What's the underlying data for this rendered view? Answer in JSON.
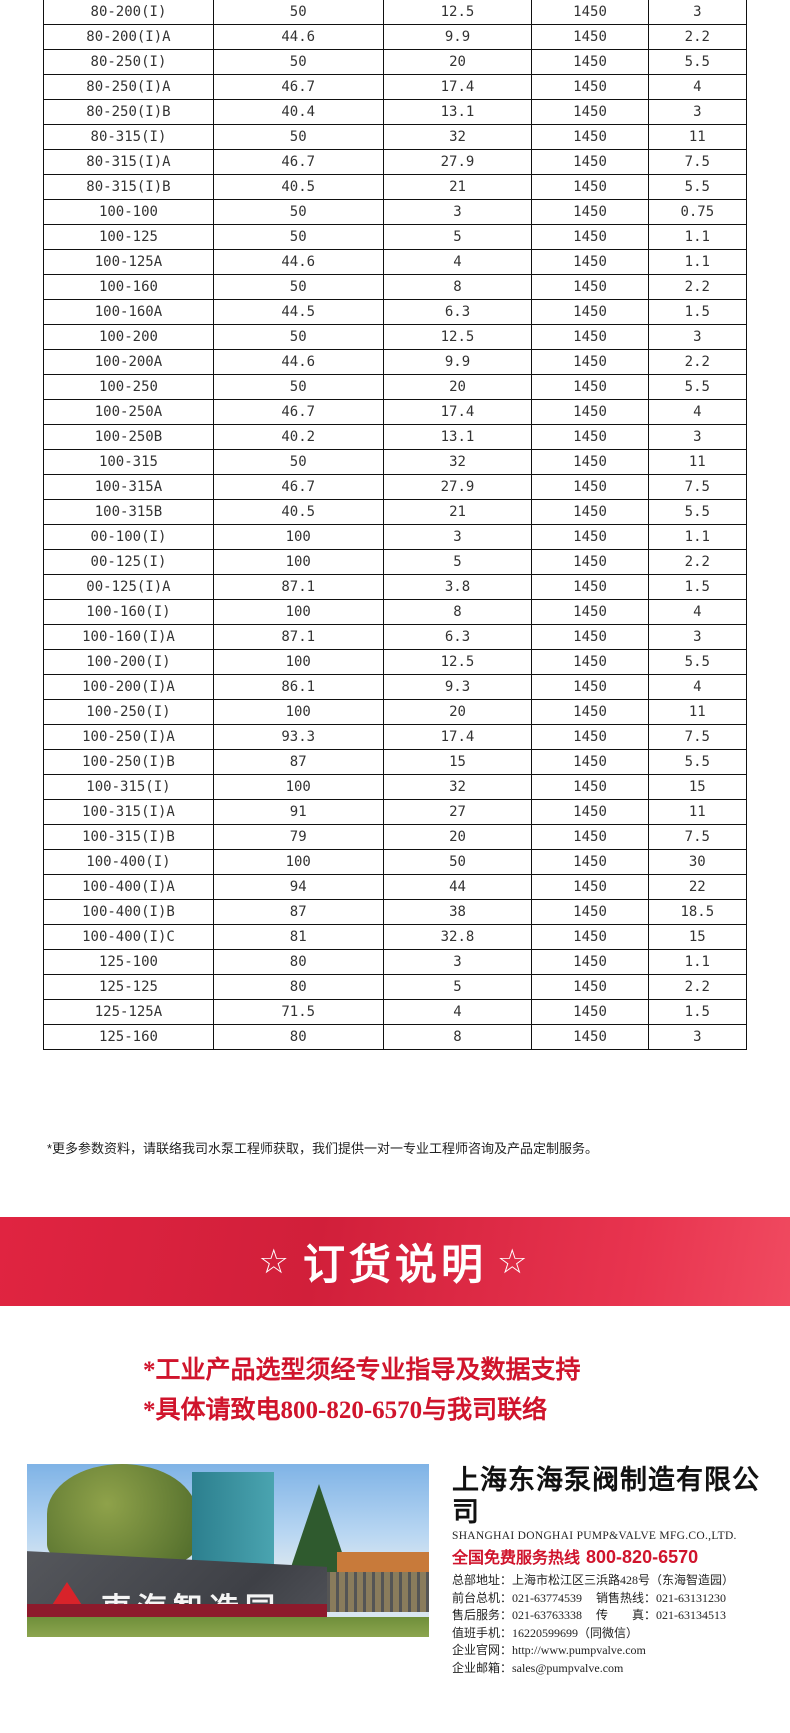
{
  "table": {
    "rows": [
      [
        "80-200(I)",
        "50",
        "12.5",
        "1450",
        "3"
      ],
      [
        "80-200(I)A",
        "44.6",
        "9.9",
        "1450",
        "2.2"
      ],
      [
        "80-250(I)",
        "50",
        "20",
        "1450",
        "5.5"
      ],
      [
        "80-250(I)A",
        "46.7",
        "17.4",
        "1450",
        "4"
      ],
      [
        "80-250(I)B",
        "40.4",
        "13.1",
        "1450",
        "3"
      ],
      [
        "80-315(I)",
        "50",
        "32",
        "1450",
        "11"
      ],
      [
        "80-315(I)A",
        "46.7",
        "27.9",
        "1450",
        "7.5"
      ],
      [
        "80-315(I)B",
        "40.5",
        "21",
        "1450",
        "5.5"
      ],
      [
        "100-100",
        "50",
        "3",
        "1450",
        "0.75"
      ],
      [
        "100-125",
        "50",
        "5",
        "1450",
        "1.1"
      ],
      [
        "100-125A",
        "44.6",
        "4",
        "1450",
        "1.1"
      ],
      [
        "100-160",
        "50",
        "8",
        "1450",
        "2.2"
      ],
      [
        "100-160A",
        "44.5",
        "6.3",
        "1450",
        "1.5"
      ],
      [
        "100-200",
        "50",
        "12.5",
        "1450",
        "3"
      ],
      [
        "100-200A",
        "44.6",
        "9.9",
        "1450",
        "2.2"
      ],
      [
        "100-250",
        "50",
        "20",
        "1450",
        "5.5"
      ],
      [
        "100-250A",
        "46.7",
        "17.4",
        "1450",
        "4"
      ],
      [
        "100-250B",
        "40.2",
        "13.1",
        "1450",
        "3"
      ],
      [
        "100-315",
        "50",
        "32",
        "1450",
        "11"
      ],
      [
        "100-315A",
        "46.7",
        "27.9",
        "1450",
        "7.5"
      ],
      [
        "100-315B",
        "40.5",
        "21",
        "1450",
        "5.5"
      ],
      [
        "00-100(I)",
        "100",
        "3",
        "1450",
        "1.1"
      ],
      [
        "00-125(I)",
        "100",
        "5",
        "1450",
        "2.2"
      ],
      [
        "00-125(I)A",
        "87.1",
        "3.8",
        "1450",
        "1.5"
      ],
      [
        "100-160(I)",
        "100",
        "8",
        "1450",
        "4"
      ],
      [
        "100-160(I)A",
        "87.1",
        "6.3",
        "1450",
        "3"
      ],
      [
        "100-200(I)",
        "100",
        "12.5",
        "1450",
        "5.5"
      ],
      [
        "100-200(I)A",
        "86.1",
        "9.3",
        "1450",
        "4"
      ],
      [
        "100-250(I)",
        "100",
        "20",
        "1450",
        "11"
      ],
      [
        "100-250(I)A",
        "93.3",
        "17.4",
        "1450",
        "7.5"
      ],
      [
        "100-250(I)B",
        "87",
        "15",
        "1450",
        "5.5"
      ],
      [
        "100-315(I)",
        "100",
        "32",
        "1450",
        "15"
      ],
      [
        "100-315(I)A",
        "91",
        "27",
        "1450",
        "11"
      ],
      [
        "100-315(I)B",
        "79",
        "20",
        "1450",
        "7.5"
      ],
      [
        "100-400(I)",
        "100",
        "50",
        "1450",
        "30"
      ],
      [
        "100-400(I)A",
        "94",
        "44",
        "1450",
        "22"
      ],
      [
        "100-400(I)B",
        "87",
        "38",
        "1450",
        "18.5"
      ],
      [
        "100-400(I)C",
        "81",
        "32.8",
        "1450",
        "15"
      ],
      [
        "125-100",
        "80",
        "3",
        "1450",
        "1.1"
      ],
      [
        "125-125",
        "80",
        "5",
        "1450",
        "2.2"
      ],
      [
        "125-125A",
        "71.5",
        "4",
        "1450",
        "1.5"
      ],
      [
        "125-160",
        "80",
        "8",
        "1450",
        "3"
      ]
    ]
  },
  "footnote": "*更多参数资料，请联络我司水泵工程师获取，我们提供一对一专业工程师咨询及产品定制服务。",
  "banner": {
    "star_left": "☆",
    "title": "订货说明",
    "star_right": "☆",
    "color": "#d81f3b"
  },
  "notices": [
    "*工业产品选型须经专业指导及数据支持",
    "*具体请致电800-820-6570与我司联络"
  ],
  "photo": {
    "wall_sign": "東海智造园"
  },
  "company": {
    "name_cn": "上海东海泵阀制造有限公司",
    "name_en": "SHANGHAI DONGHAI PUMP&VALVE MFG.CO.,LTD.",
    "hotline_label": "全国免费服务热线",
    "hotline": "800-820-6570",
    "address": "总部地址：上海市松江区三浜路428号（东海智造园）",
    "front_desk": "前台总机：021-63774539",
    "sales": "销售热线：021-63131230",
    "after_sales": "售后服务：021-63763338",
    "fax": "传　　真：021-63134513",
    "duty_phone": "值班手机：16220599699（同微信）",
    "website": "企业官网：http://www.pumpvalve.com",
    "email": "企业邮箱：sales@pumpvalve.com"
  }
}
